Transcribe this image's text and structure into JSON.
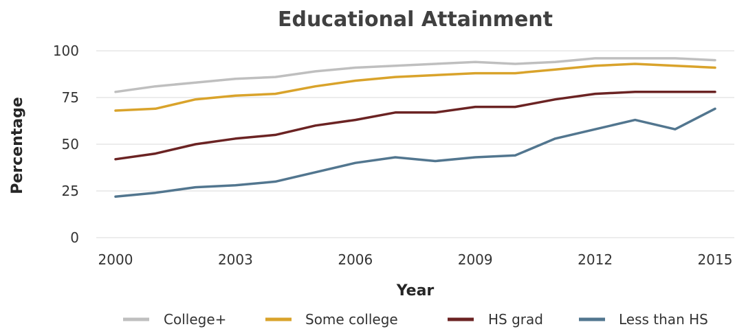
{
  "colors": {
    "college_plus": "#bfbfbf",
    "some_college": "#d9a32b",
    "hs_grad": "#6b2323",
    "less_than_hs": "#52768f"
  },
  "chart_data": {
    "type": "line",
    "title": "Educational Attainment",
    "xlabel": "Year",
    "ylabel": "Percentage",
    "x": [
      2000,
      2001,
      2002,
      2003,
      2004,
      2005,
      2006,
      2007,
      2008,
      2009,
      2010,
      2011,
      2012,
      2013,
      2014,
      2015
    ],
    "x_tick_labels": [
      "2000",
      "2003",
      "2006",
      "2009",
      "2012",
      "2015"
    ],
    "y_tick_labels": [
      "0",
      "25",
      "50",
      "75",
      "100"
    ],
    "ylim": [
      0,
      100
    ],
    "grid": true,
    "legend_position": "bottom",
    "series": [
      {
        "name": "College+",
        "color_key": "college_plus",
        "values": [
          78,
          81,
          83,
          85,
          86,
          89,
          91,
          92,
          93,
          94,
          93,
          94,
          96,
          96,
          96,
          95
        ]
      },
      {
        "name": "Some college",
        "color_key": "some_college",
        "values": [
          68,
          69,
          74,
          76,
          77,
          81,
          84,
          86,
          87,
          88,
          88,
          90,
          92,
          93,
          92,
          91
        ]
      },
      {
        "name": "HS grad",
        "color_key": "hs_grad",
        "values": [
          42,
          45,
          50,
          53,
          55,
          60,
          63,
          67,
          67,
          70,
          70,
          74,
          77,
          78,
          78,
          78
        ]
      },
      {
        "name": "Less than HS",
        "color_key": "less_than_hs",
        "values": [
          22,
          24,
          27,
          28,
          30,
          35,
          40,
          43,
          41,
          43,
          44,
          53,
          58,
          63,
          58,
          69
        ]
      }
    ]
  }
}
